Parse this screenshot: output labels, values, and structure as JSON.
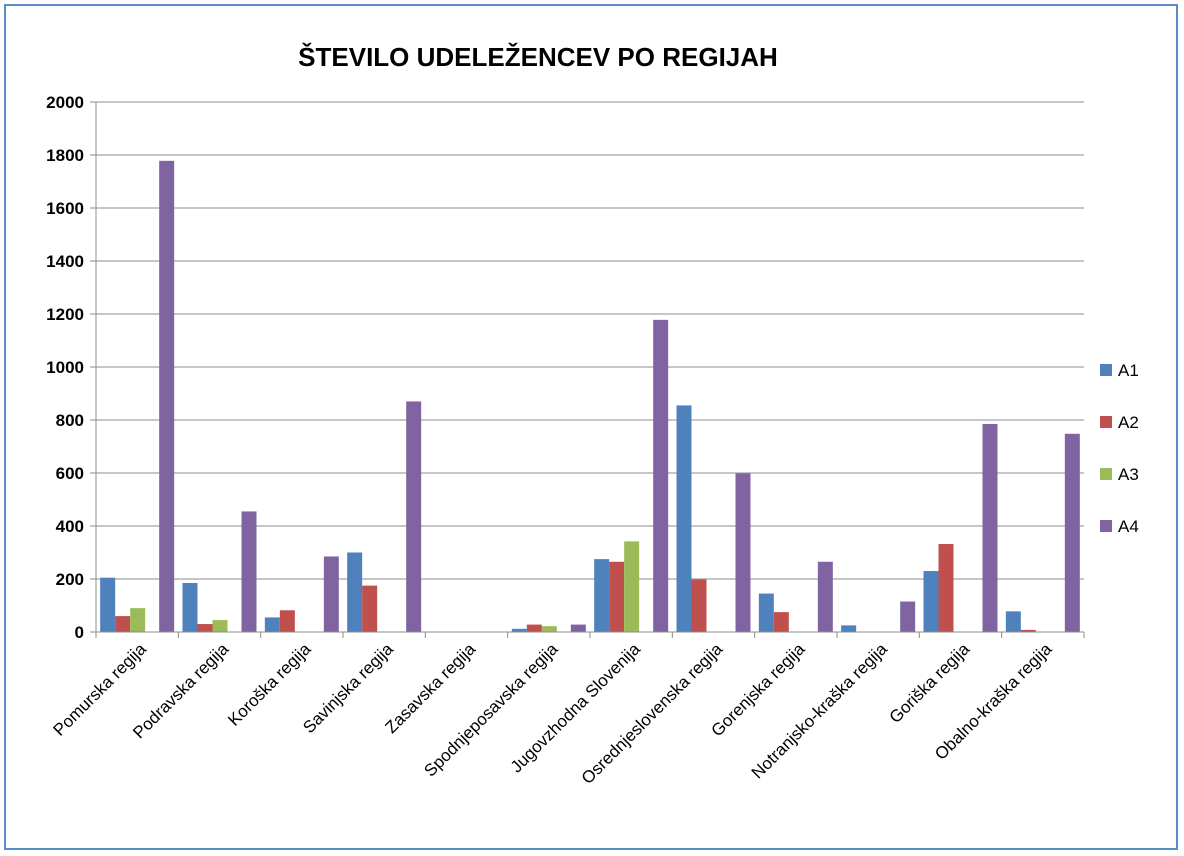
{
  "chart_data": {
    "type": "bar",
    "title": "ŠTEVILO UDELEŽENCEV  PO REGIJAH",
    "xlabel": "",
    "ylabel": "",
    "ylim": [
      0,
      2000
    ],
    "yticks": [
      "0",
      "200",
      "400",
      "600",
      "800",
      "1000",
      "1200",
      "1400",
      "1600",
      "1800",
      "2000"
    ],
    "grid": true,
    "legend_position": "right",
    "categories": [
      "Pomurska regija",
      "Podravska regija",
      "Koroška regija",
      "Savinjska regija",
      "Zasavska regija",
      "Spodnjeposavska regija",
      "Jugovzhodna Slovenija",
      "Osrednjeslovenska regija",
      "Gorenjska regija",
      "Notranjsko-kraška regija",
      "Goriška regija",
      "Obalno-kraška regija"
    ],
    "series": [
      {
        "name": "A1",
        "color": "#4f81bd",
        "values": [
          205,
          185,
          55,
          300,
          0,
          12,
          275,
          855,
          145,
          25,
          230,
          78
        ]
      },
      {
        "name": "A2",
        "color": "#c0504d",
        "values": [
          60,
          30,
          82,
          175,
          0,
          28,
          265,
          198,
          75,
          0,
          332,
          8
        ]
      },
      {
        "name": "A3",
        "color": "#9bbb59",
        "values": [
          90,
          45,
          0,
          0,
          0,
          22,
          342,
          0,
          0,
          0,
          0,
          0
        ]
      },
      {
        "name": "A4",
        "color": "#8064a2",
        "values": [
          1778,
          455,
          285,
          870,
          0,
          28,
          1178,
          598,
          265,
          115,
          785,
          748
        ]
      }
    ]
  }
}
